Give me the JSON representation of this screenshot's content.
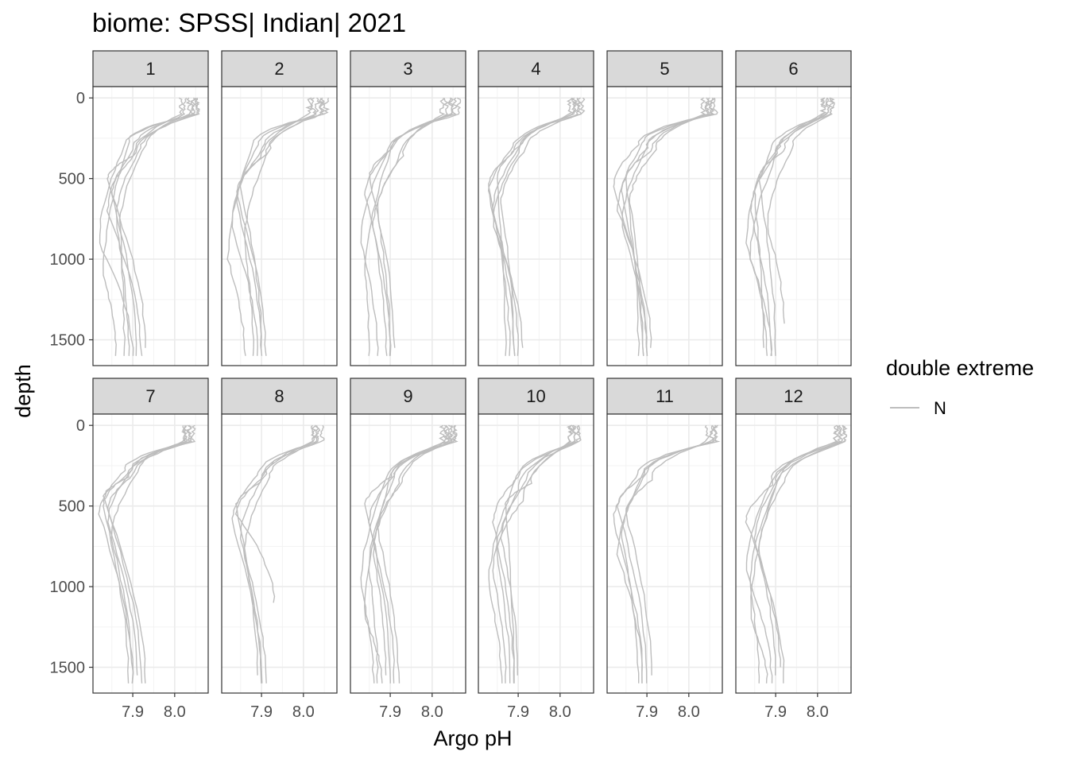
{
  "chart_data": {
    "type": "line",
    "title": "biome: SPSS| Indian| 2021",
    "xlabel": "Argo pH",
    "ylabel": "depth",
    "x_ticks": [
      "7.9",
      "8.0"
    ],
    "x_tick_values": [
      7.9,
      8.0
    ],
    "y_ticks": [
      "0",
      "500",
      "1000",
      "1500"
    ],
    "y_tick_values": [
      0,
      500,
      1000,
      1500
    ],
    "xlim": [
      7.805,
      8.08
    ],
    "ylim_reversed": [
      1660,
      -70
    ],
    "grid": true,
    "line_color": "#bdbdbd",
    "legend": {
      "title": "double extreme",
      "entries": [
        "N"
      ],
      "placement": "right"
    },
    "panels": [
      {
        "label": "1",
        "profiles": [
          {
            "surf": 8.05,
            "thermo": 180,
            "omz_ph": 7.82,
            "omz_depth": 900,
            "deep_ph": 7.9,
            "end_depth": 1600
          },
          {
            "surf": 8.03,
            "thermo": 200,
            "omz_ph": 7.84,
            "omz_depth": 700,
            "deep_ph": 7.92,
            "end_depth": 1600
          },
          {
            "surf": 8.06,
            "thermo": 150,
            "omz_ph": 7.83,
            "omz_depth": 1100,
            "deep_ph": 7.86,
            "end_depth": 1600
          },
          {
            "surf": 8.04,
            "thermo": 220,
            "omz_ph": 7.85,
            "omz_depth": 600,
            "deep_ph": 7.93,
            "end_depth": 1550
          },
          {
            "surf": 8.05,
            "thermo": 190,
            "omz_ph": 7.86,
            "omz_depth": 750,
            "deep_ph": 7.89,
            "end_depth": 1600
          },
          {
            "surf": 8.02,
            "thermo": 240,
            "omz_ph": 7.84,
            "omz_depth": 500,
            "deep_ph": 7.91,
            "end_depth": 1600
          },
          {
            "surf": 8.06,
            "thermo": 170,
            "omz_ph": 7.87,
            "omz_depth": 800,
            "deep_ph": 7.88,
            "end_depth": 1600
          }
        ]
      },
      {
        "label": "2",
        "profiles": [
          {
            "surf": 8.05,
            "thermo": 170,
            "omz_ph": 7.83,
            "omz_depth": 800,
            "deep_ph": 7.89,
            "end_depth": 1600
          },
          {
            "surf": 8.03,
            "thermo": 210,
            "omz_ph": 7.84,
            "omz_depth": 650,
            "deep_ph": 7.9,
            "end_depth": 1600
          },
          {
            "surf": 8.06,
            "thermo": 160,
            "omz_ph": 7.82,
            "omz_depth": 1000,
            "deep_ph": 7.86,
            "end_depth": 1600
          },
          {
            "surf": 8.04,
            "thermo": 230,
            "omz_ph": 7.85,
            "omz_depth": 550,
            "deep_ph": 7.9,
            "end_depth": 1550
          },
          {
            "surf": 8.05,
            "thermo": 190,
            "omz_ph": 7.86,
            "omz_depth": 900,
            "deep_ph": 7.88,
            "end_depth": 1600
          },
          {
            "surf": 8.02,
            "thermo": 250,
            "omz_ph": 7.84,
            "omz_depth": 600,
            "deep_ph": 7.91,
            "end_depth": 1600
          }
        ]
      },
      {
        "label": "3",
        "profiles": [
          {
            "surf": 8.07,
            "thermo": 200,
            "omz_ph": 7.84,
            "omz_depth": 600,
            "deep_ph": 7.9,
            "end_depth": 1600
          },
          {
            "surf": 8.05,
            "thermo": 230,
            "omz_ph": 7.83,
            "omz_depth": 900,
            "deep_ph": 7.87,
            "end_depth": 1600
          },
          {
            "surf": 8.06,
            "thermo": 180,
            "omz_ph": 7.85,
            "omz_depth": 500,
            "deep_ph": 7.91,
            "end_depth": 1550
          },
          {
            "surf": 8.04,
            "thermo": 260,
            "omz_ph": 7.86,
            "omz_depth": 800,
            "deep_ph": 7.89,
            "end_depth": 1600
          },
          {
            "surf": 8.05,
            "thermo": 210,
            "omz_ph": 7.84,
            "omz_depth": 1100,
            "deep_ph": 7.85,
            "end_depth": 1600
          },
          {
            "surf": 8.03,
            "thermo": 240,
            "omz_ph": 7.87,
            "omz_depth": 700,
            "deep_ph": 7.9,
            "end_depth": 1600
          }
        ]
      },
      {
        "label": "4",
        "profiles": [
          {
            "surf": 8.05,
            "thermo": 180,
            "omz_ph": 7.83,
            "omz_depth": 600,
            "deep_ph": 7.89,
            "end_depth": 1600
          },
          {
            "surf": 8.04,
            "thermo": 200,
            "omz_ph": 7.84,
            "omz_depth": 700,
            "deep_ph": 7.9,
            "end_depth": 1600
          },
          {
            "surf": 8.06,
            "thermo": 160,
            "omz_ph": 7.85,
            "omz_depth": 500,
            "deep_ph": 7.87,
            "end_depth": 1600
          },
          {
            "surf": 8.03,
            "thermo": 220,
            "omz_ph": 7.84,
            "omz_depth": 800,
            "deep_ph": 7.91,
            "end_depth": 1550
          },
          {
            "surf": 8.05,
            "thermo": 190,
            "omz_ph": 7.86,
            "omz_depth": 650,
            "deep_ph": 7.89,
            "end_depth": 1600
          },
          {
            "surf": 8.04,
            "thermo": 210,
            "omz_ph": 7.83,
            "omz_depth": 550,
            "deep_ph": 7.88,
            "end_depth": 1600
          }
        ]
      },
      {
        "label": "5",
        "profiles": [
          {
            "surf": 8.06,
            "thermo": 170,
            "omz_ph": 7.82,
            "omz_depth": 550,
            "deep_ph": 7.9,
            "end_depth": 1600
          },
          {
            "surf": 8.05,
            "thermo": 190,
            "omz_ph": 7.84,
            "omz_depth": 600,
            "deep_ph": 7.89,
            "end_depth": 1600
          },
          {
            "surf": 8.07,
            "thermo": 160,
            "omz_ph": 7.83,
            "omz_depth": 700,
            "deep_ph": 7.91,
            "end_depth": 1550
          },
          {
            "surf": 8.04,
            "thermo": 210,
            "omz_ph": 7.85,
            "omz_depth": 500,
            "deep_ph": 7.88,
            "end_depth": 1600
          },
          {
            "surf": 8.06,
            "thermo": 180,
            "omz_ph": 7.84,
            "omz_depth": 800,
            "deep_ph": 7.9,
            "end_depth": 1600
          },
          {
            "surf": 8.05,
            "thermo": 200,
            "omz_ph": 7.86,
            "omz_depth": 650,
            "deep_ph": 7.89,
            "end_depth": 1600
          }
        ]
      },
      {
        "label": "6",
        "profiles": [
          {
            "surf": 8.03,
            "thermo": 200,
            "omz_ph": 7.83,
            "omz_depth": 900,
            "deep_ph": 7.88,
            "end_depth": 1600
          },
          {
            "surf": 8.02,
            "thermo": 230,
            "omz_ph": 7.84,
            "omz_depth": 700,
            "deep_ph": 7.89,
            "end_depth": 1600
          },
          {
            "surf": 8.04,
            "thermo": 180,
            "omz_ph": 7.85,
            "omz_depth": 600,
            "deep_ph": 7.87,
            "end_depth": 1550
          },
          {
            "surf": 8.03,
            "thermo": 250,
            "omz_ph": 7.84,
            "omz_depth": 1000,
            "deep_ph": 7.89,
            "end_depth": 1600
          },
          {
            "surf": 8.02,
            "thermo": 210,
            "omz_ph": 7.86,
            "omz_depth": 500,
            "deep_ph": 7.9,
            "end_depth": 1600
          },
          {
            "surf": 8.04,
            "thermo": 190,
            "omz_ph": 7.88,
            "omz_depth": 800,
            "deep_ph": 7.92,
            "end_depth": 1400
          }
        ]
      },
      {
        "label": "7",
        "profiles": [
          {
            "surf": 8.04,
            "thermo": 160,
            "omz_ph": 7.82,
            "omz_depth": 550,
            "deep_ph": 7.9,
            "end_depth": 1600
          },
          {
            "surf": 8.03,
            "thermo": 180,
            "omz_ph": 7.83,
            "omz_depth": 500,
            "deep_ph": 7.89,
            "end_depth": 1600
          },
          {
            "surf": 8.05,
            "thermo": 150,
            "omz_ph": 7.84,
            "omz_depth": 600,
            "deep_ph": 7.91,
            "end_depth": 1550
          },
          {
            "surf": 8.03,
            "thermo": 200,
            "omz_ph": 7.83,
            "omz_depth": 450,
            "deep_ph": 7.92,
            "end_depth": 1600
          },
          {
            "surf": 8.04,
            "thermo": 170,
            "omz_ph": 7.85,
            "omz_depth": 700,
            "deep_ph": 7.9,
            "end_depth": 1600
          },
          {
            "surf": 8.03,
            "thermo": 190,
            "omz_ph": 7.84,
            "omz_depth": 520,
            "deep_ph": 7.93,
            "end_depth": 1600
          }
        ]
      },
      {
        "label": "8",
        "profiles": [
          {
            "surf": 8.04,
            "thermo": 190,
            "omz_ph": 7.83,
            "omz_depth": 600,
            "deep_ph": 7.9,
            "end_depth": 1600
          },
          {
            "surf": 8.03,
            "thermo": 210,
            "omz_ph": 7.84,
            "omz_depth": 550,
            "deep_ph": 7.93,
            "end_depth": 1100
          },
          {
            "surf": 8.05,
            "thermo": 180,
            "omz_ph": 7.85,
            "omz_depth": 700,
            "deep_ph": 7.9,
            "end_depth": 1600
          },
          {
            "surf": 8.03,
            "thermo": 230,
            "omz_ph": 7.84,
            "omz_depth": 500,
            "deep_ph": 7.89,
            "end_depth": 1550
          },
          {
            "surf": 8.04,
            "thermo": 200,
            "omz_ph": 7.86,
            "omz_depth": 800,
            "deep_ph": 7.91,
            "end_depth": 1600
          }
        ]
      },
      {
        "label": "9",
        "profiles": [
          {
            "surf": 8.05,
            "thermo": 200,
            "omz_ph": 7.84,
            "omz_depth": 500,
            "deep_ph": 7.9,
            "end_depth": 1600
          },
          {
            "surf": 8.04,
            "thermo": 220,
            "omz_ph": 7.83,
            "omz_depth": 1000,
            "deep_ph": 7.86,
            "end_depth": 1600
          },
          {
            "surf": 8.06,
            "thermo": 190,
            "omz_ph": 7.85,
            "omz_depth": 600,
            "deep_ph": 7.91,
            "end_depth": 1600
          },
          {
            "surf": 8.03,
            "thermo": 240,
            "omz_ph": 7.86,
            "omz_depth": 800,
            "deep_ph": 7.89,
            "end_depth": 1550
          },
          {
            "surf": 8.05,
            "thermo": 210,
            "omz_ph": 7.84,
            "omz_depth": 1200,
            "deep_ph": 7.88,
            "end_depth": 1600
          },
          {
            "surf": 8.04,
            "thermo": 230,
            "omz_ph": 7.87,
            "omz_depth": 650,
            "deep_ph": 7.92,
            "end_depth": 1600
          },
          {
            "surf": 8.06,
            "thermo": 200,
            "omz_ph": 7.85,
            "omz_depth": 900,
            "deep_ph": 7.87,
            "end_depth": 1600
          }
        ]
      },
      {
        "label": "10",
        "profiles": [
          {
            "surf": 8.05,
            "thermo": 200,
            "omz_ph": 7.84,
            "omz_depth": 600,
            "deep_ph": 7.89,
            "end_depth": 1600
          },
          {
            "surf": 8.03,
            "thermo": 350,
            "omz_ph": 7.85,
            "omz_depth": 800,
            "deep_ph": 7.88,
            "end_depth": 1600
          },
          {
            "surf": 8.04,
            "thermo": 250,
            "omz_ph": 7.83,
            "omz_depth": 1000,
            "deep_ph": 7.86,
            "end_depth": 1600
          },
          {
            "surf": 8.05,
            "thermo": 220,
            "omz_ph": 7.86,
            "omz_depth": 700,
            "deep_ph": 7.9,
            "end_depth": 1550
          },
          {
            "surf": 8.03,
            "thermo": 280,
            "omz_ph": 7.84,
            "omz_depth": 900,
            "deep_ph": 7.87,
            "end_depth": 1600
          },
          {
            "surf": 8.04,
            "thermo": 240,
            "omz_ph": 7.87,
            "omz_depth": 500,
            "deep_ph": 7.89,
            "end_depth": 1600
          }
        ]
      },
      {
        "label": "11",
        "profiles": [
          {
            "surf": 8.07,
            "thermo": 180,
            "omz_ph": 7.82,
            "omz_depth": 600,
            "deep_ph": 7.89,
            "end_depth": 1600
          },
          {
            "surf": 8.06,
            "thermo": 200,
            "omz_ph": 7.83,
            "omz_depth": 500,
            "deep_ph": 7.9,
            "end_depth": 1600
          },
          {
            "surf": 8.07,
            "thermo": 170,
            "omz_ph": 7.84,
            "omz_depth": 700,
            "deep_ph": 7.88,
            "end_depth": 1600
          },
          {
            "surf": 8.05,
            "thermo": 220,
            "omz_ph": 7.85,
            "omz_depth": 550,
            "deep_ph": 7.91,
            "end_depth": 1550
          },
          {
            "surf": 8.06,
            "thermo": 190,
            "omz_ph": 7.83,
            "omz_depth": 800,
            "deep_ph": 7.89,
            "end_depth": 1600
          }
        ]
      },
      {
        "label": "12",
        "profiles": [
          {
            "surf": 8.07,
            "thermo": 220,
            "omz_ph": 7.83,
            "omz_depth": 900,
            "deep_ph": 7.89,
            "end_depth": 1600
          },
          {
            "surf": 8.06,
            "thermo": 240,
            "omz_ph": 7.84,
            "omz_depth": 1200,
            "deep_ph": 7.88,
            "end_depth": 1600
          },
          {
            "surf": 8.05,
            "thermo": 200,
            "omz_ph": 7.85,
            "omz_depth": 700,
            "deep_ph": 7.9,
            "end_depth": 1550
          },
          {
            "surf": 8.07,
            "thermo": 260,
            "omz_ph": 7.84,
            "omz_depth": 1000,
            "deep_ph": 7.86,
            "end_depth": 1600
          },
          {
            "surf": 8.06,
            "thermo": 230,
            "omz_ph": 7.86,
            "omz_depth": 800,
            "deep_ph": 7.91,
            "end_depth": 1500
          },
          {
            "surf": 8.05,
            "thermo": 250,
            "omz_ph": 7.83,
            "omz_depth": 600,
            "deep_ph": 7.92,
            "end_depth": 1600
          }
        ]
      }
    ]
  }
}
